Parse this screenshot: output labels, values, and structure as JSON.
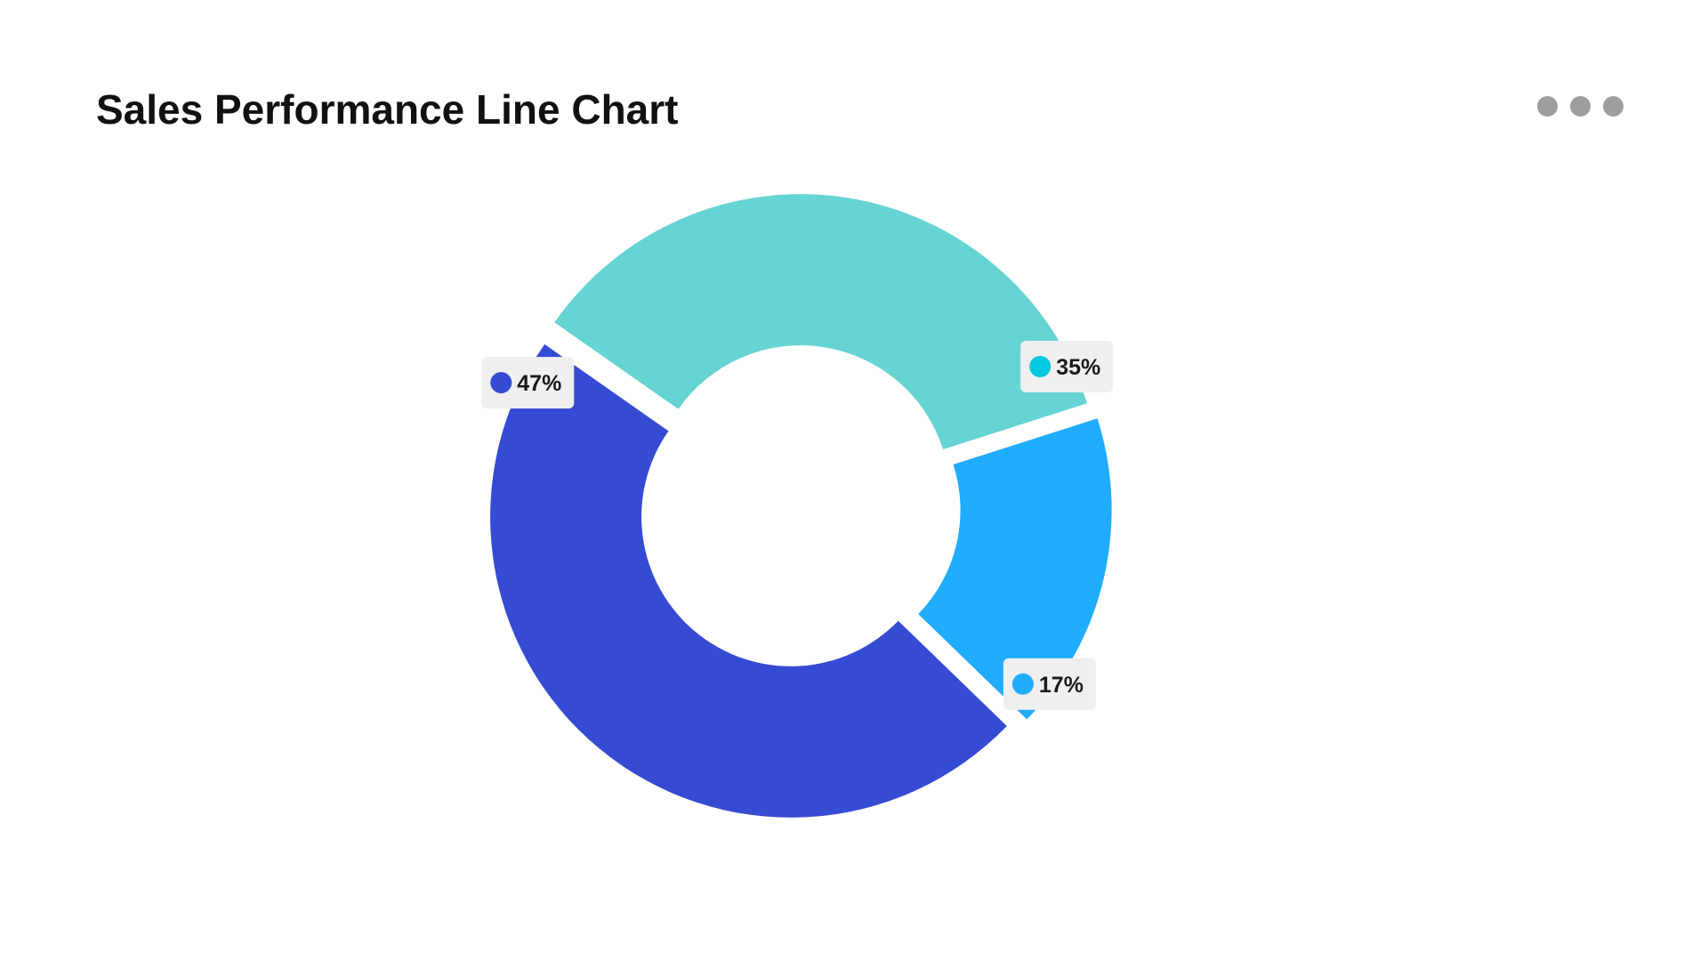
{
  "header": {
    "title": "Sales Performance Line Chart"
  },
  "menu": {
    "icon": "more-horizontal-icon"
  },
  "chart_data": {
    "type": "pie",
    "variant": "donut",
    "title": "Sales Performance Line Chart",
    "slices": [
      {
        "value": 35,
        "label": "35%",
        "color": "#67d4d4",
        "dot_color": "#00c8e0"
      },
      {
        "value": 17,
        "label": "17%",
        "color": "#20acff",
        "dot_color": "#20acff"
      },
      {
        "value": 47,
        "label": "47%",
        "color": "#364bd3",
        "dot_color": "#364bd3"
      }
    ],
    "legend": "none",
    "label_style": "badge"
  }
}
